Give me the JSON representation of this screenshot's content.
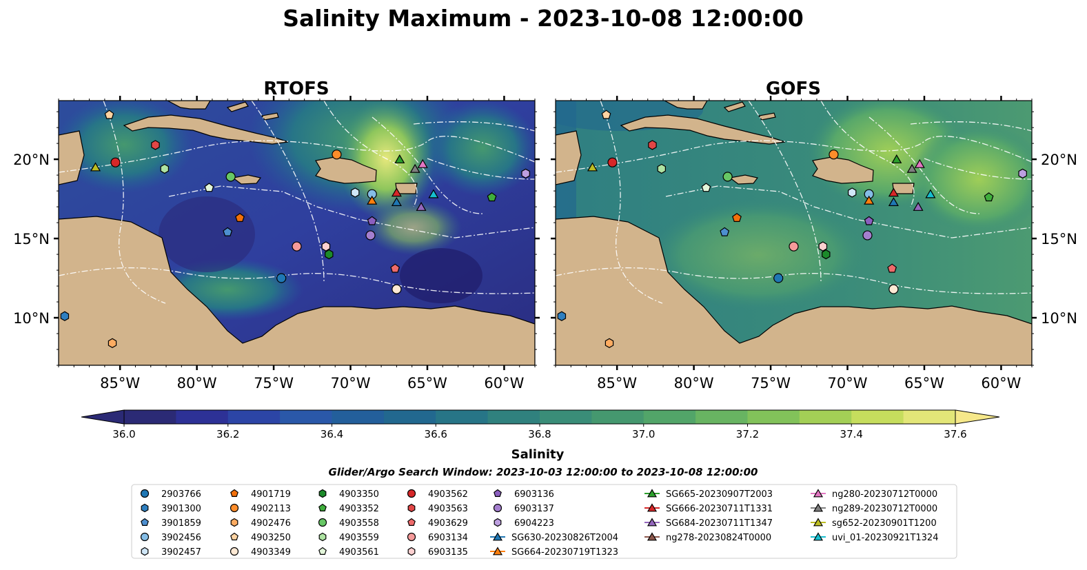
{
  "title": "Salinity Maximum - 2023-10-08 12:00:00",
  "maps": [
    {
      "name": "RTOFS"
    },
    {
      "name": "GOFS"
    }
  ],
  "lat_labels": [
    "20°N",
    "15°N",
    "10°N"
  ],
  "lat_values": [
    20,
    15,
    10
  ],
  "lon_labels": [
    "85°W",
    "80°W",
    "75°W",
    "70°W",
    "65°W",
    "60°W"
  ],
  "lon_values": [
    -85,
    -80,
    -75,
    -70,
    -65,
    -60
  ],
  "extent": {
    "lon_min": -89,
    "lon_max": -58,
    "lat_min": 7,
    "lat_max": 23.7
  },
  "colorbar": {
    "label": "Salinity",
    "min": 36.0,
    "max": 37.6,
    "tick_labels": [
      "36.0",
      "36.2",
      "36.4",
      "36.6",
      "36.8",
      "37.0",
      "37.2",
      "37.4",
      "37.6"
    ],
    "ticks": [
      36.0,
      36.2,
      36.4,
      36.6,
      36.8,
      37.0,
      37.2,
      37.4,
      37.6
    ],
    "colors": [
      "#2b2a75",
      "#2d3196",
      "#2c45a6",
      "#2a58a9",
      "#235f9b",
      "#22688f",
      "#277587",
      "#30817e",
      "#3a8d78",
      "#45986f",
      "#52a569",
      "#68b462",
      "#82c25a",
      "#a3cf56",
      "#c6dd5d",
      "#e3e678",
      "#f6e88a"
    ]
  },
  "search_window": "Glider/Argo Search Window: 2023-10-03 12:00:00 to 2023-10-08 12:00:00",
  "legend": {
    "columns": [
      [
        {
          "label": "2903766",
          "marker": "circle",
          "color": "#1f77b4"
        },
        {
          "label": "3901300",
          "marker": "hexagon",
          "color": "#2f7fc0"
        },
        {
          "label": "3901859",
          "marker": "pentagon",
          "color": "#4d8fd0"
        },
        {
          "label": "3902456",
          "marker": "circle",
          "color": "#85bde6"
        },
        {
          "label": "3902457",
          "marker": "hexagon",
          "color": "#cfe6f7"
        }
      ],
      [
        {
          "label": "4901719",
          "marker": "pentagon",
          "color": "#f2700a"
        },
        {
          "label": "4902113",
          "marker": "circle",
          "color": "#fd8d2b"
        },
        {
          "label": "4902476",
          "marker": "hexagon",
          "color": "#fdac62"
        },
        {
          "label": "4903250",
          "marker": "pentagon",
          "color": "#fdd3a2"
        },
        {
          "label": "4903349",
          "marker": "circle",
          "color": "#fde9d4"
        }
      ],
      [
        {
          "label": "4903350",
          "marker": "hexagon",
          "color": "#1c8a2a"
        },
        {
          "label": "4903352",
          "marker": "pentagon",
          "color": "#3fae3c"
        },
        {
          "label": "4903558",
          "marker": "circle",
          "color": "#67c765"
        },
        {
          "label": "4903559",
          "marker": "hexagon",
          "color": "#aee3a2"
        },
        {
          "label": "4903561",
          "marker": "pentagon",
          "color": "#e3f6da"
        }
      ],
      [
        {
          "label": "4903562",
          "marker": "circle",
          "color": "#d62728"
        },
        {
          "label": "4903563",
          "marker": "hexagon",
          "color": "#e24646"
        },
        {
          "label": "4903629",
          "marker": "pentagon",
          "color": "#ee6b6b"
        },
        {
          "label": "6903134",
          "marker": "circle",
          "color": "#f59a9a"
        },
        {
          "label": "6903135",
          "marker": "hexagon",
          "color": "#fcd0d0"
        }
      ],
      [
        {
          "label": "6903136",
          "marker": "pentagon",
          "color": "#8b5fbf"
        },
        {
          "label": "6903137",
          "marker": "circle",
          "color": "#a57fcf"
        },
        {
          "label": "6904223",
          "marker": "hexagon",
          "color": "#bd9fe0"
        },
        {
          "label": "SG630-20230826T2004",
          "marker": "triangle-line",
          "color": "#1f77b4"
        },
        {
          "label": "SG664-20230719T1323",
          "marker": "triangle-line",
          "color": "#ff7f0e"
        }
      ],
      [
        {
          "label": "SG665-20230907T2003",
          "marker": "triangle-line",
          "color": "#2ca02c"
        },
        {
          "label": "SG666-20230711T1331",
          "marker": "triangle-line",
          "color": "#d62728"
        },
        {
          "label": "SG684-20230711T1347",
          "marker": "triangle-line",
          "color": "#9467bd"
        },
        {
          "label": "ng278-20230824T0000",
          "marker": "triangle-line",
          "color": "#8c564b"
        }
      ],
      [
        {
          "label": "ng280-20230712T0000",
          "marker": "triangle-line",
          "color": "#e377c2"
        },
        {
          "label": "ng289-20230712T0000",
          "marker": "triangle-line",
          "color": "#7f7f7f"
        },
        {
          "label": "sg652-20230901T1200",
          "marker": "triangle-line",
          "color": "#bcbd22"
        },
        {
          "label": "uvi_01-20230921T1324",
          "marker": "triangle-line",
          "color": "#17becf"
        }
      ]
    ]
  },
  "observations": [
    {
      "id": "4903250",
      "lon": -85.7,
      "lat": 22.8,
      "marker": "pentagon",
      "color": "#fdd3a2"
    },
    {
      "id": "4903563",
      "lon": -82.7,
      "lat": 20.9,
      "marker": "hexagon",
      "color": "#e24646"
    },
    {
      "id": "4903562",
      "lon": -85.3,
      "lat": 19.8,
      "marker": "circle",
      "color": "#d62728"
    },
    {
      "id": "sg652-20230901T1200",
      "lon": -86.6,
      "lat": 19.5,
      "marker": "triangle",
      "color": "#bcbd22"
    },
    {
      "id": "4903559",
      "lon": -82.1,
      "lat": 19.4,
      "marker": "hexagon",
      "color": "#aee3a2"
    },
    {
      "id": "4903558",
      "lon": -77.8,
      "lat": 18.9,
      "marker": "circle",
      "color": "#67c765"
    },
    {
      "id": "4903561",
      "lon": -79.2,
      "lat": 18.2,
      "marker": "pentagon",
      "color": "#e3f6da"
    },
    {
      "id": "4902113",
      "lon": -70.9,
      "lat": 20.3,
      "marker": "circle",
      "color": "#fd8d2b"
    },
    {
      "id": "SG665-20230907T2003",
      "lon": -66.8,
      "lat": 20.0,
      "marker": "triangle",
      "color": "#2ca02c"
    },
    {
      "id": "ng289-20230712T0000",
      "lon": -65.8,
      "lat": 19.4,
      "marker": "triangle",
      "color": "#7f7f7f"
    },
    {
      "id": "ng280-20230712T0000",
      "lon": -65.3,
      "lat": 19.7,
      "marker": "triangle",
      "color": "#e377c2"
    },
    {
      "id": "3902457",
      "lon": -69.7,
      "lat": 17.9,
      "marker": "hexagon",
      "color": "#cfe6f7"
    },
    {
      "id": "3902456",
      "lon": -68.6,
      "lat": 17.8,
      "marker": "circle",
      "color": "#85bde6"
    },
    {
      "id": "SG664-20230719T1323",
      "lon": -68.6,
      "lat": 17.4,
      "marker": "triangle",
      "color": "#ff7f0e"
    },
    {
      "id": "SG666-20230711T1331",
      "lon": -67.0,
      "lat": 17.9,
      "marker": "triangle",
      "color": "#d62728"
    },
    {
      "id": "SG630-20230826T2004",
      "lon": -67.0,
      "lat": 17.3,
      "marker": "triangle",
      "color": "#1f77b4"
    },
    {
      "id": "uvi_01-20230921T1324",
      "lon": -64.6,
      "lat": 17.8,
      "marker": "triangle",
      "color": "#17becf"
    },
    {
      "id": "SG684-20230711T1347",
      "lon": -65.4,
      "lat": 17.0,
      "marker": "triangle",
      "color": "#9467bd"
    },
    {
      "id": "4903352",
      "lon": -60.8,
      "lat": 17.6,
      "marker": "pentagon",
      "color": "#3fae3c"
    },
    {
      "id": "6904223",
      "lon": -58.6,
      "lat": 19.1,
      "marker": "hexagon",
      "color": "#bd9fe0"
    },
    {
      "id": "6903136",
      "lon": -68.6,
      "lat": 16.1,
      "marker": "pentagon",
      "color": "#8b5fbf"
    },
    {
      "id": "6903137",
      "lon": -68.7,
      "lat": 15.2,
      "marker": "circle",
      "color": "#a57fcf"
    },
    {
      "id": "4901719",
      "lon": -77.2,
      "lat": 16.3,
      "marker": "pentagon",
      "color": "#f2700a"
    },
    {
      "id": "3901859",
      "lon": -78.0,
      "lat": 15.4,
      "marker": "pentagon",
      "color": "#4d8fd0"
    },
    {
      "id": "6903134",
      "lon": -73.5,
      "lat": 14.5,
      "marker": "circle",
      "color": "#f59a9a"
    },
    {
      "id": "6903135",
      "lon": -71.6,
      "lat": 14.5,
      "marker": "hexagon",
      "color": "#fcd0d0"
    },
    {
      "id": "4903350",
      "lon": -71.4,
      "lat": 14.0,
      "marker": "hexagon",
      "color": "#1c8a2a"
    },
    {
      "id": "4903629",
      "lon": -67.1,
      "lat": 13.1,
      "marker": "pentagon",
      "color": "#ee6b6b"
    },
    {
      "id": "2903766",
      "lon": -74.5,
      "lat": 12.5,
      "marker": "circle",
      "color": "#1f77b4"
    },
    {
      "id": "4903349",
      "lon": -67.0,
      "lat": 11.8,
      "marker": "circle",
      "color": "#fde9d4"
    },
    {
      "id": "3901300",
      "lon": -88.6,
      "lat": 10.1,
      "marker": "hexagon",
      "color": "#2f7fc0"
    },
    {
      "id": "4902476",
      "lon": -85.5,
      "lat": 8.4,
      "marker": "hexagon",
      "color": "#fdac62"
    }
  ]
}
